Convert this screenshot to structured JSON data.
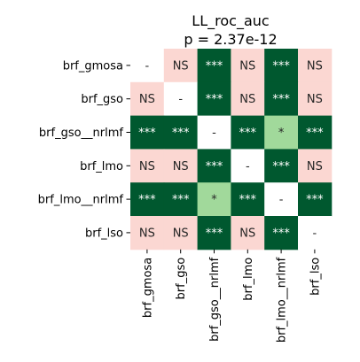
{
  "chart_data": {
    "type": "heatmap",
    "title": "LL_roc_auc",
    "subtitle": "p = 2.37e-12",
    "xlabel": "",
    "ylabel": "",
    "rows": [
      "brf_gmosa",
      "brf_gso",
      "brf_gso__nrlmf",
      "brf_lmo",
      "brf_lmo__nrlmf",
      "brf_lso"
    ],
    "cols": [
      "brf_gmosa",
      "brf_gso",
      "brf_gso__nrlmf",
      "brf_lmo",
      "brf_lmo__nrlmf",
      "brf_lso"
    ],
    "cells": [
      [
        "-",
        "NS",
        "***",
        "NS",
        "***",
        "NS"
      ],
      [
        "NS",
        "-",
        "***",
        "NS",
        "***",
        "NS"
      ],
      [
        "***",
        "***",
        "-",
        "***",
        "*",
        "***"
      ],
      [
        "NS",
        "NS",
        "***",
        "-",
        "***",
        "NS"
      ],
      [
        "***",
        "***",
        "*",
        "***",
        "-",
        "***"
      ],
      [
        "NS",
        "NS",
        "***",
        "NS",
        "***",
        "-"
      ]
    ],
    "colors": {
      "***": "#00582f",
      "*": "#a1d99b",
      "NS": "#fbd7d2",
      "-": "#ffffff"
    },
    "text_colors": {
      "***": "#ffffff",
      "*": "#262626",
      "NS": "#262626",
      "-": "#262626"
    }
  }
}
